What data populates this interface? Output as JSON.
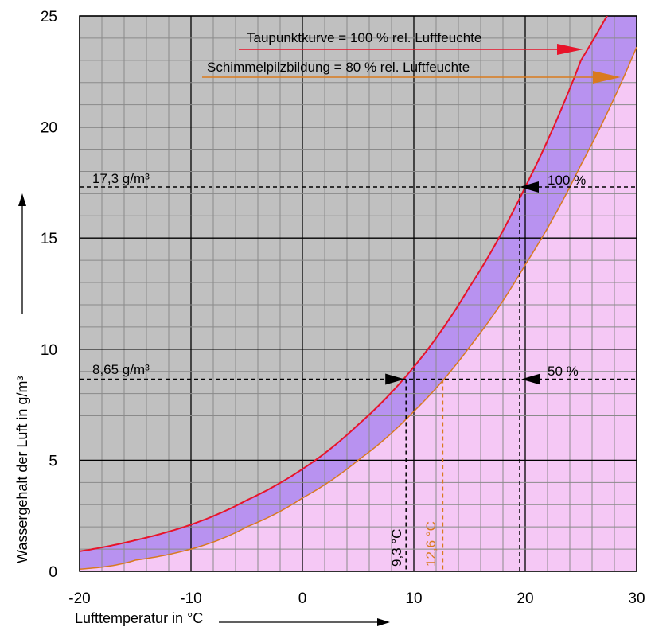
{
  "chart_data": {
    "type": "line",
    "xlabel": "Lufttemperatur in °C",
    "ylabel": "Wassergehalt der Luft in g/m³",
    "xlim": [
      -20,
      30
    ],
    "ylim": [
      0,
      25
    ],
    "x_ticks": [
      "-20",
      "-10",
      "0",
      "10",
      "20",
      "30"
    ],
    "y_ticks": [
      "0",
      "5",
      "10",
      "15",
      "20",
      "25"
    ],
    "grid": true,
    "x": [
      -20,
      -15,
      -10,
      -5,
      0,
      5,
      10,
      15,
      20,
      25,
      30
    ],
    "series": [
      {
        "name": "Taupunktkurve = 100 % rel. Luftfeuchte",
        "color": "#e8142a",
        "values": [
          0.9,
          1.4,
          2.1,
          3.2,
          4.6,
          6.6,
          9.2,
          12.8,
          17.3,
          23.0,
          27.5
        ]
      },
      {
        "name": "Schimmelpilzbildung = 80 % rel. Luftfeuchte",
        "color": "#d97a1e",
        "values": [
          0.1,
          0.5,
          1.0,
          2.0,
          3.3,
          5.0,
          7.2,
          10.1,
          13.8,
          18.3,
          23.6
        ]
      }
    ],
    "colors": {
      "dry_region": "#c0c0c0",
      "band": "#b892f0",
      "humid_region": "#f5c8f5",
      "grid_minor": "#8a8a8a",
      "grid_major": "#000000"
    },
    "annotations": {
      "legend_dew": "Taupunktkurve = 100 % rel. Luftfeuchte",
      "legend_mold": "Schimmelpilzbildung = 80 % rel. Luftfeuchte",
      "h_line_upper": {
        "label": "17,3 g/m³",
        "y": 17.3
      },
      "h_line_lower": {
        "label": "8,65 g/m³",
        "y": 8.65
      },
      "point_100": {
        "label": "100 %",
        "x": 19.5,
        "y": 17.3
      },
      "point_50": {
        "label": "50 %",
        "x": 19.5,
        "y": 8.65
      },
      "dew_point": {
        "label": "9,3 °C",
        "x": 9.3,
        "y": 8.65
      },
      "mold_point": {
        "label": "12,6 °C",
        "x": 12.6,
        "y": 8.65
      }
    }
  }
}
